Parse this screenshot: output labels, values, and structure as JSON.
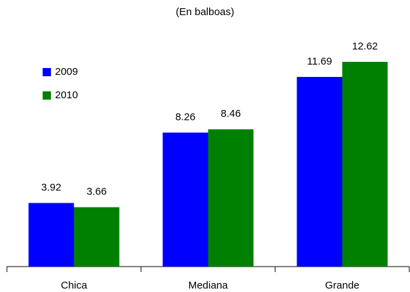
{
  "chart_data": {
    "type": "bar",
    "title": "(En balboas)",
    "categories": [
      "Chica",
      "Mediana",
      "Grande"
    ],
    "series": [
      {
        "name": "2009",
        "color": "#0000ff",
        "values": [
          3.92,
          8.26,
          11.69
        ]
      },
      {
        "name": "2010",
        "color": "#008000",
        "values": [
          3.66,
          8.46,
          12.62
        ]
      }
    ],
    "legend": "upper left"
  }
}
